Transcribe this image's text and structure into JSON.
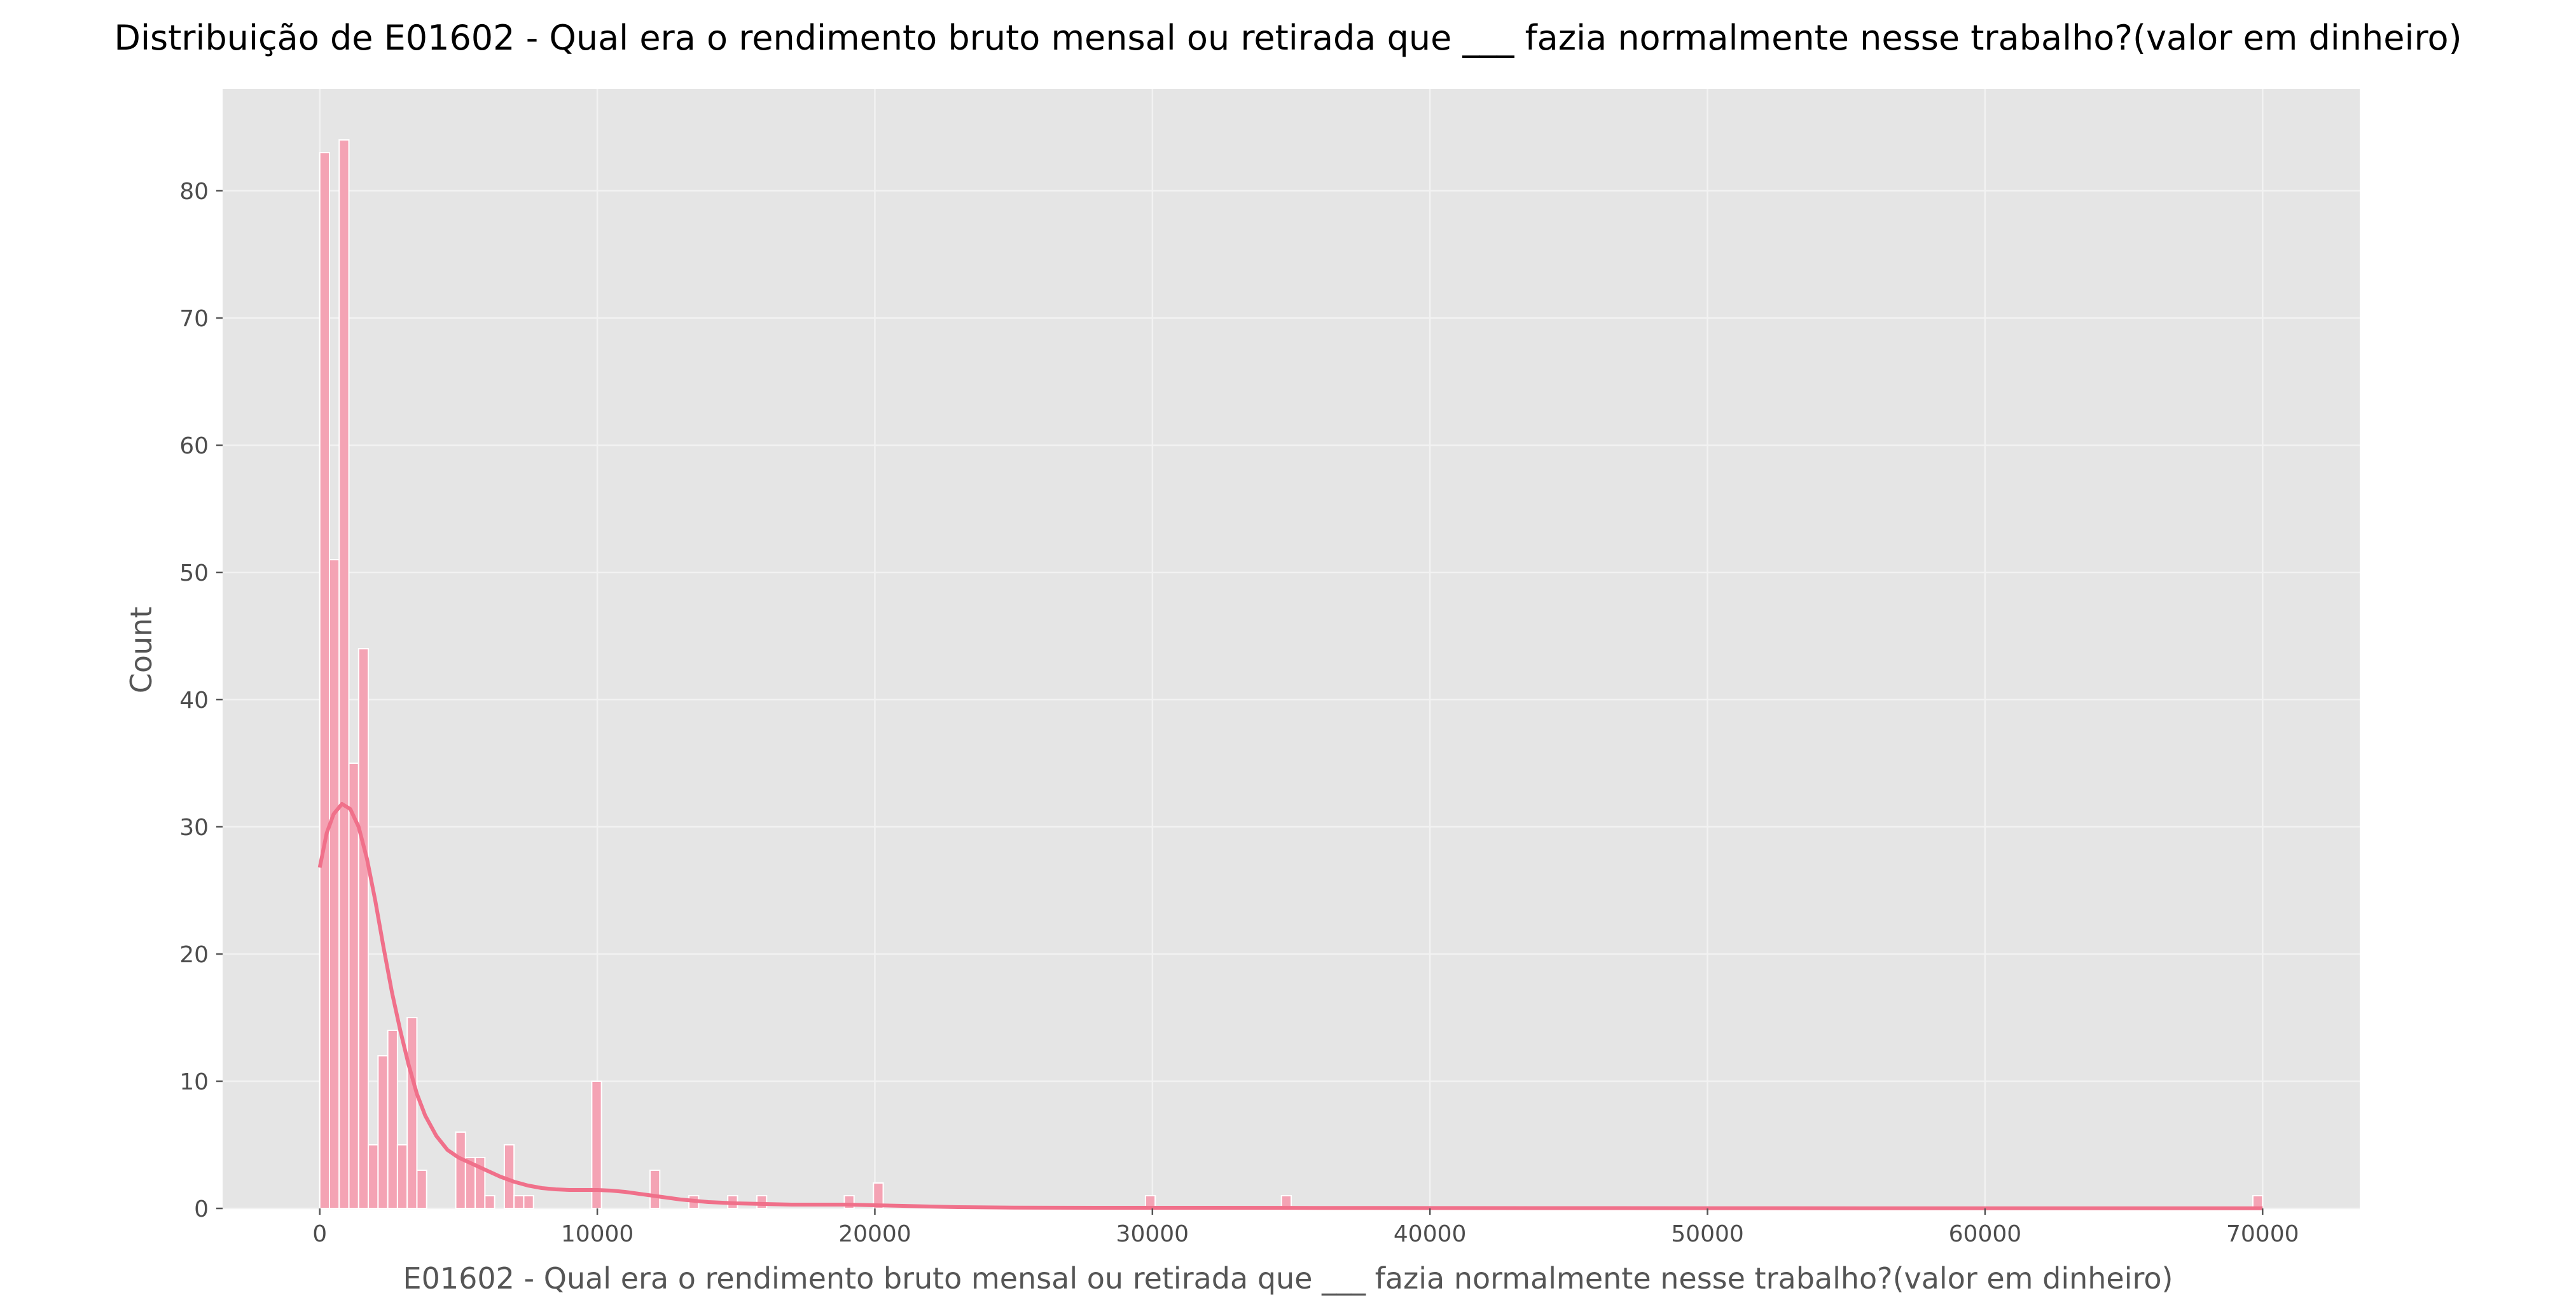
{
  "chart_data": {
    "type": "bar",
    "title": "Distribuição de E01602 - Qual era o rendimento bruto mensal ou retirada que ___ fazia normalmente nesse trabalho?(valor em dinheiro)",
    "xlabel": "E01602 - Qual era o rendimento bruto mensal ou retirada que ___ fazia normalmente nesse trabalho?(valor em dinheiro)",
    "ylabel": "Count",
    "xlim": [
      -3500,
      73500
    ],
    "ylim": [
      0,
      88
    ],
    "x_ticks": [
      0,
      10000,
      20000,
      30000,
      40000,
      50000,
      60000,
      70000
    ],
    "y_ticks": [
      0,
      10,
      20,
      30,
      40,
      50,
      60,
      70,
      80
    ],
    "grid": true,
    "bin_width": 350,
    "bars_color": "#f4a3b4",
    "bars_edge_color": "#ffffff",
    "kde_color": "#f0708a",
    "plot_background": "#e5e5e5",
    "grid_color": "#f2f2f2",
    "bars": [
      {
        "x": 0,
        "count": 83
      },
      {
        "x": 350,
        "count": 51
      },
      {
        "x": 700,
        "count": 84
      },
      {
        "x": 1050,
        "count": 35
      },
      {
        "x": 1400,
        "count": 44
      },
      {
        "x": 1750,
        "count": 5
      },
      {
        "x": 2100,
        "count": 12
      },
      {
        "x": 2450,
        "count": 14
      },
      {
        "x": 2800,
        "count": 5
      },
      {
        "x": 3150,
        "count": 15
      },
      {
        "x": 3500,
        "count": 3
      },
      {
        "x": 4900,
        "count": 6
      },
      {
        "x": 5250,
        "count": 4
      },
      {
        "x": 5600,
        "count": 4
      },
      {
        "x": 5950,
        "count": 1
      },
      {
        "x": 6650,
        "count": 5
      },
      {
        "x": 7000,
        "count": 1
      },
      {
        "x": 7350,
        "count": 1
      },
      {
        "x": 9800,
        "count": 10
      },
      {
        "x": 11900,
        "count": 3
      },
      {
        "x": 13300,
        "count": 1
      },
      {
        "x": 14700,
        "count": 1
      },
      {
        "x": 15750,
        "count": 1
      },
      {
        "x": 18900,
        "count": 1
      },
      {
        "x": 19950,
        "count": 2
      },
      {
        "x": 29750,
        "count": 1
      },
      {
        "x": 34650,
        "count": 1
      },
      {
        "x": 69650,
        "count": 1
      }
    ],
    "kde": {
      "x": [
        0,
        250,
        500,
        800,
        1100,
        1400,
        1700,
        2000,
        2300,
        2600,
        2900,
        3200,
        3500,
        3800,
        4200,
        4600,
        5000,
        5500,
        6000,
        6500,
        7000,
        7500,
        8000,
        8500,
        9000,
        9500,
        10000,
        10500,
        11000,
        11500,
        12000,
        12500,
        13000,
        14000,
        15000,
        16000,
        17000,
        18000,
        19000,
        20000,
        21000,
        22000,
        23000,
        25000,
        28000,
        32000,
        36000,
        40000,
        50000,
        60000,
        70000
      ],
      "y": [
        26.8,
        29.5,
        31.0,
        31.8,
        31.4,
        30.0,
        27.5,
        24.2,
        20.5,
        17.0,
        14.0,
        11.3,
        9.0,
        7.3,
        5.7,
        4.6,
        4.0,
        3.5,
        3.0,
        2.5,
        2.1,
        1.8,
        1.6,
        1.5,
        1.45,
        1.45,
        1.45,
        1.4,
        1.3,
        1.15,
        1.0,
        0.85,
        0.7,
        0.5,
        0.4,
        0.35,
        0.3,
        0.3,
        0.3,
        0.25,
        0.2,
        0.15,
        0.1,
        0.06,
        0.05,
        0.05,
        0.04,
        0.03,
        0.02,
        0.01,
        0.01
      ]
    }
  }
}
